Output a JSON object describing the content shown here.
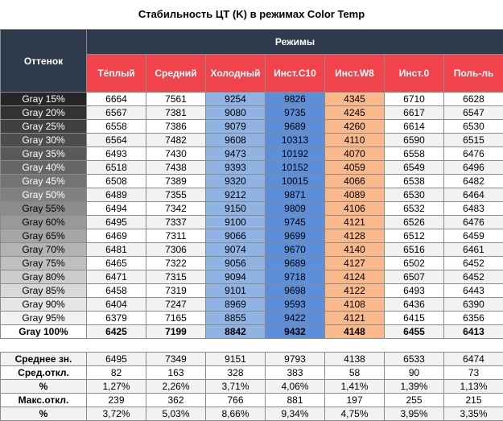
{
  "title": "Стабильность ЦТ (K) в режимах Color Temp",
  "header": {
    "shade_label": "Оттенок",
    "modes_label": "Режимы",
    "columns": [
      "Тёплый",
      "Средний",
      "Холодный",
      "Инст.C10",
      "Инст.W8",
      "Инст.0",
      "Поль-ль"
    ]
  },
  "chart_data": {
    "type": "table",
    "title": "Стабильность ЦТ (K) в режимах Color Temp",
    "columns": [
      "Тёплый",
      "Средний",
      "Холодный",
      "Инст.C10",
      "Инст.W8",
      "Инст.0",
      "Поль-ль"
    ],
    "rows": [
      {
        "shade": "Gray 15%",
        "values": [
          "6664",
          "7561",
          "9254",
          "9826",
          "4345",
          "6710",
          "6628"
        ]
      },
      {
        "shade": "Gray 20%",
        "values": [
          "6567",
          "7381",
          "9080",
          "9735",
          "4245",
          "6617",
          "6547"
        ]
      },
      {
        "shade": "Gray 25%",
        "values": [
          "6558",
          "7386",
          "9079",
          "9689",
          "4260",
          "6614",
          "6530"
        ]
      },
      {
        "shade": "Gray 30%",
        "values": [
          "6564",
          "7482",
          "9608",
          "10313",
          "4110",
          "6590",
          "6515"
        ]
      },
      {
        "shade": "Gray 35%",
        "values": [
          "6493",
          "7430",
          "9473",
          "10192",
          "4070",
          "6558",
          "6476"
        ]
      },
      {
        "shade": "Gray 40%",
        "values": [
          "6518",
          "7438",
          "9393",
          "10152",
          "4059",
          "6549",
          "6496"
        ]
      },
      {
        "shade": "Gray 45%",
        "values": [
          "6508",
          "7389",
          "9320",
          "10015",
          "4066",
          "6538",
          "6482"
        ]
      },
      {
        "shade": "Gray 50%",
        "values": [
          "6489",
          "7355",
          "9212",
          "9871",
          "4089",
          "6530",
          "6464"
        ]
      },
      {
        "shade": "Gray 55%",
        "values": [
          "6494",
          "7342",
          "9150",
          "9809",
          "4106",
          "6532",
          "6483"
        ]
      },
      {
        "shade": "Gray 60%",
        "values": [
          "6495",
          "7337",
          "9100",
          "9745",
          "4121",
          "6526",
          "6476"
        ]
      },
      {
        "shade": "Gray 65%",
        "values": [
          "6469",
          "7311",
          "9066",
          "9699",
          "4128",
          "6512",
          "6459"
        ]
      },
      {
        "shade": "Gray 70%",
        "values": [
          "6481",
          "7306",
          "9074",
          "9670",
          "4140",
          "6516",
          "6461"
        ]
      },
      {
        "shade": "Gray 75%",
        "values": [
          "6465",
          "7322",
          "9056",
          "9689",
          "4127",
          "6502",
          "6452"
        ]
      },
      {
        "shade": "Gray 80%",
        "values": [
          "6471",
          "7315",
          "9094",
          "9718",
          "4124",
          "6507",
          "6452"
        ]
      },
      {
        "shade": "Gray 85%",
        "values": [
          "6458",
          "7319",
          "9101",
          "9698",
          "4122",
          "6493",
          "6443"
        ]
      },
      {
        "shade": "Gray 90%",
        "values": [
          "6404",
          "7247",
          "8969",
          "9593",
          "4108",
          "6436",
          "6390"
        ]
      },
      {
        "shade": "Gray 95%",
        "values": [
          "6379",
          "7165",
          "8855",
          "9422",
          "4121",
          "6415",
          "6356"
        ]
      },
      {
        "shade": "Gray 100%",
        "values": [
          "6425",
          "7199",
          "8842",
          "9432",
          "4148",
          "6455",
          "6413"
        ]
      }
    ],
    "stats": [
      {
        "label": "Среднее зн.",
        "values": [
          "6495",
          "7349",
          "9151",
          "9793",
          "4138",
          "6533",
          "6474"
        ]
      },
      {
        "label": "Сред.откл.",
        "values": [
          "82",
          "163",
          "328",
          "383",
          "58",
          "90",
          "73"
        ]
      },
      {
        "label": "%",
        "values": [
          "1,27%",
          "2,26%",
          "3,71%",
          "4,06%",
          "1,41%",
          "1,39%",
          "1,13%"
        ]
      },
      {
        "label": "Макс.откл.",
        "values": [
          "239",
          "362",
          "766",
          "881",
          "197",
          "255",
          "215"
        ]
      },
      {
        "label": "%",
        "values": [
          "3,72%",
          "5,03%",
          "8,66%",
          "9,34%",
          "4,75%",
          "3,95%",
          "3,35%"
        ]
      }
    ]
  },
  "colors": {
    "header_dark": "#2f3b4c",
    "header_red": "#f0434c",
    "cold_blue": "#8fb4e3",
    "c10_blue": "#5b8fd9",
    "w8_orange": "#f9b98a",
    "stripe": "#f2f2f2"
  }
}
